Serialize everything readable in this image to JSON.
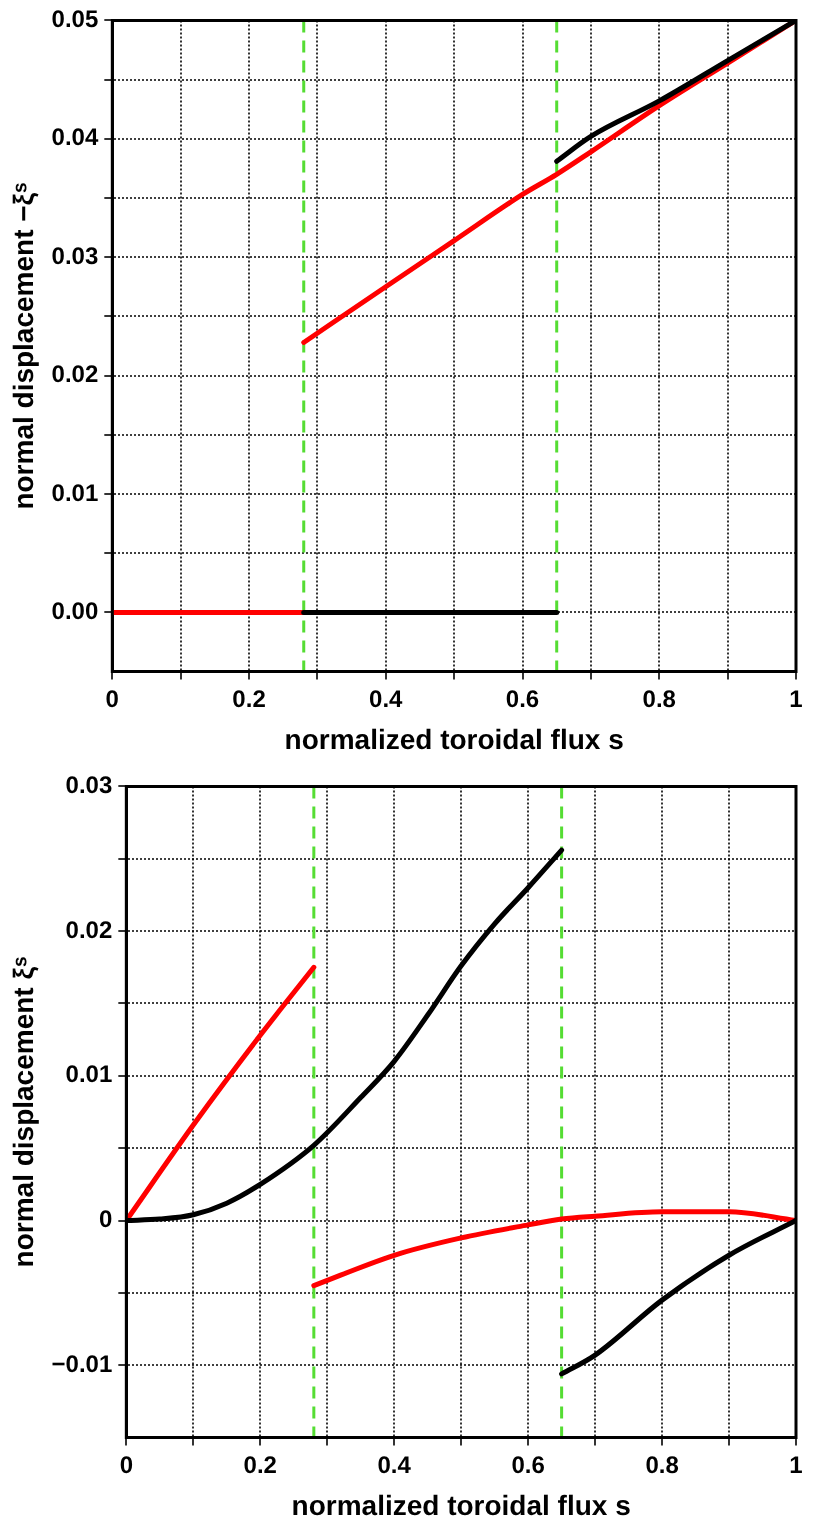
{
  "chart_data": [
    {
      "type": "line",
      "xlabel": "normalized toroidal flux s",
      "ylabel": "normal displacement −ξˢ",
      "xlim": [
        0,
        1
      ],
      "ylim": [
        -0.005,
        0.05
      ],
      "xticks": [
        0,
        {
          "value": 0.1,
          "label": null
        },
        0.2,
        {
          "value": 0.3,
          "label": null
        },
        0.4,
        {
          "value": 0.5,
          "label": null
        },
        0.6,
        {
          "value": 0.7,
          "label": null
        },
        0.8,
        {
          "value": 0.9,
          "label": null
        },
        1
      ],
      "yticks": [
        {
          "value": 0,
          "label": "0.00"
        },
        {
          "value": 0.005,
          "label": null
        },
        0.01,
        {
          "value": 0.015,
          "label": null
        },
        0.02,
        {
          "value": 0.025,
          "label": null
        },
        0.03,
        {
          "value": 0.035,
          "label": null
        },
        0.04,
        {
          "value": 0.045,
          "label": null
        },
        0.05
      ],
      "grid": true,
      "marker": "none",
      "line_style": "solid",
      "ref_lines": [
        {
          "axis": "x",
          "value": 0.28,
          "color": "#55dd33",
          "line_style": "dashed"
        },
        {
          "axis": "x",
          "value": 0.65,
          "color": "#55dd33",
          "line_style": "dashed"
        }
      ],
      "series": [
        {
          "color": "#000000",
          "x": [
            0.28,
            0.65
          ],
          "values": [
            0,
            0
          ]
        },
        {
          "color": "#000000",
          "x": [
            0.65,
            0.7,
            0.8,
            0.9,
            1
          ],
          "values": [
            0.0381,
            0.0402,
            0.0432,
            0.0466,
            0.05
          ]
        },
        {
          "color": "#ff0000",
          "x": [
            0,
            0.28
          ],
          "values": [
            0,
            0
          ]
        },
        {
          "color": "#ff0000",
          "x": [
            0.28,
            0.4,
            0.5,
            0.6,
            0.65,
            0.7,
            0.8,
            0.9,
            1
          ],
          "values": [
            0.0228,
            0.0275,
            0.0314,
            0.0353,
            0.037,
            0.0389,
            0.0428,
            0.0464,
            0.05
          ]
        }
      ]
    },
    {
      "type": "line",
      "xlabel": "normalized toroidal flux s",
      "ylabel": "normal displacement ξˢ",
      "xlim": [
        0,
        1
      ],
      "ylim": [
        -0.015,
        0.03
      ],
      "xticks": [
        0,
        {
          "value": 0.1,
          "label": null
        },
        0.2,
        {
          "value": 0.3,
          "label": null
        },
        0.4,
        {
          "value": 0.5,
          "label": null
        },
        0.6,
        {
          "value": 0.7,
          "label": null
        },
        0.8,
        {
          "value": 0.9,
          "label": null
        },
        1
      ],
      "yticks": [
        {
          "value": -0.01,
          "label": "−0.01"
        },
        {
          "value": -0.005,
          "label": null
        },
        0,
        {
          "value": 0.005,
          "label": null
        },
        0.01,
        {
          "value": 0.015,
          "label": null
        },
        0.02,
        {
          "value": 0.025,
          "label": null
        },
        0.03
      ],
      "grid": true,
      "marker": "none",
      "line_style": "solid",
      "ref_lines": [
        {
          "axis": "x",
          "value": 0.28,
          "color": "#55dd33",
          "line_style": "dashed"
        },
        {
          "axis": "x",
          "value": 0.65,
          "color": "#55dd33",
          "line_style": "dashed"
        }
      ],
      "series": [
        {
          "color": "#000000",
          "x": [
            0,
            0.05,
            0.1,
            0.15,
            0.2,
            0.28,
            0.35,
            0.4,
            0.45,
            0.5,
            0.55,
            0.6,
            0.65
          ],
          "values": [
            0,
            0.0001,
            0.0004,
            0.0012,
            0.0025,
            0.0052,
            0.0085,
            0.011,
            0.0142,
            0.0176,
            0.0205,
            0.023,
            0.0256
          ]
        },
        {
          "color": "#000000",
          "x": [
            0.65,
            0.7,
            0.8,
            0.9,
            1
          ],
          "values": [
            -0.0106,
            -0.0093,
            -0.0055,
            -0.0024,
            0
          ]
        },
        {
          "color": "#ff0000",
          "x": [
            0,
            0.1,
            0.2,
            0.28
          ],
          "values": [
            0,
            0.0066,
            0.0128,
            0.0175
          ]
        },
        {
          "color": "#ff0000",
          "x": [
            0.28,
            0.4,
            0.5,
            0.6,
            0.65,
            0.7,
            0.8,
            0.9,
            1
          ],
          "values": [
            -0.0045,
            -0.0024,
            -0.0012,
            -0.0003,
            0.0001,
            0.0003,
            0.0006,
            0.0006,
            0
          ]
        }
      ]
    }
  ]
}
